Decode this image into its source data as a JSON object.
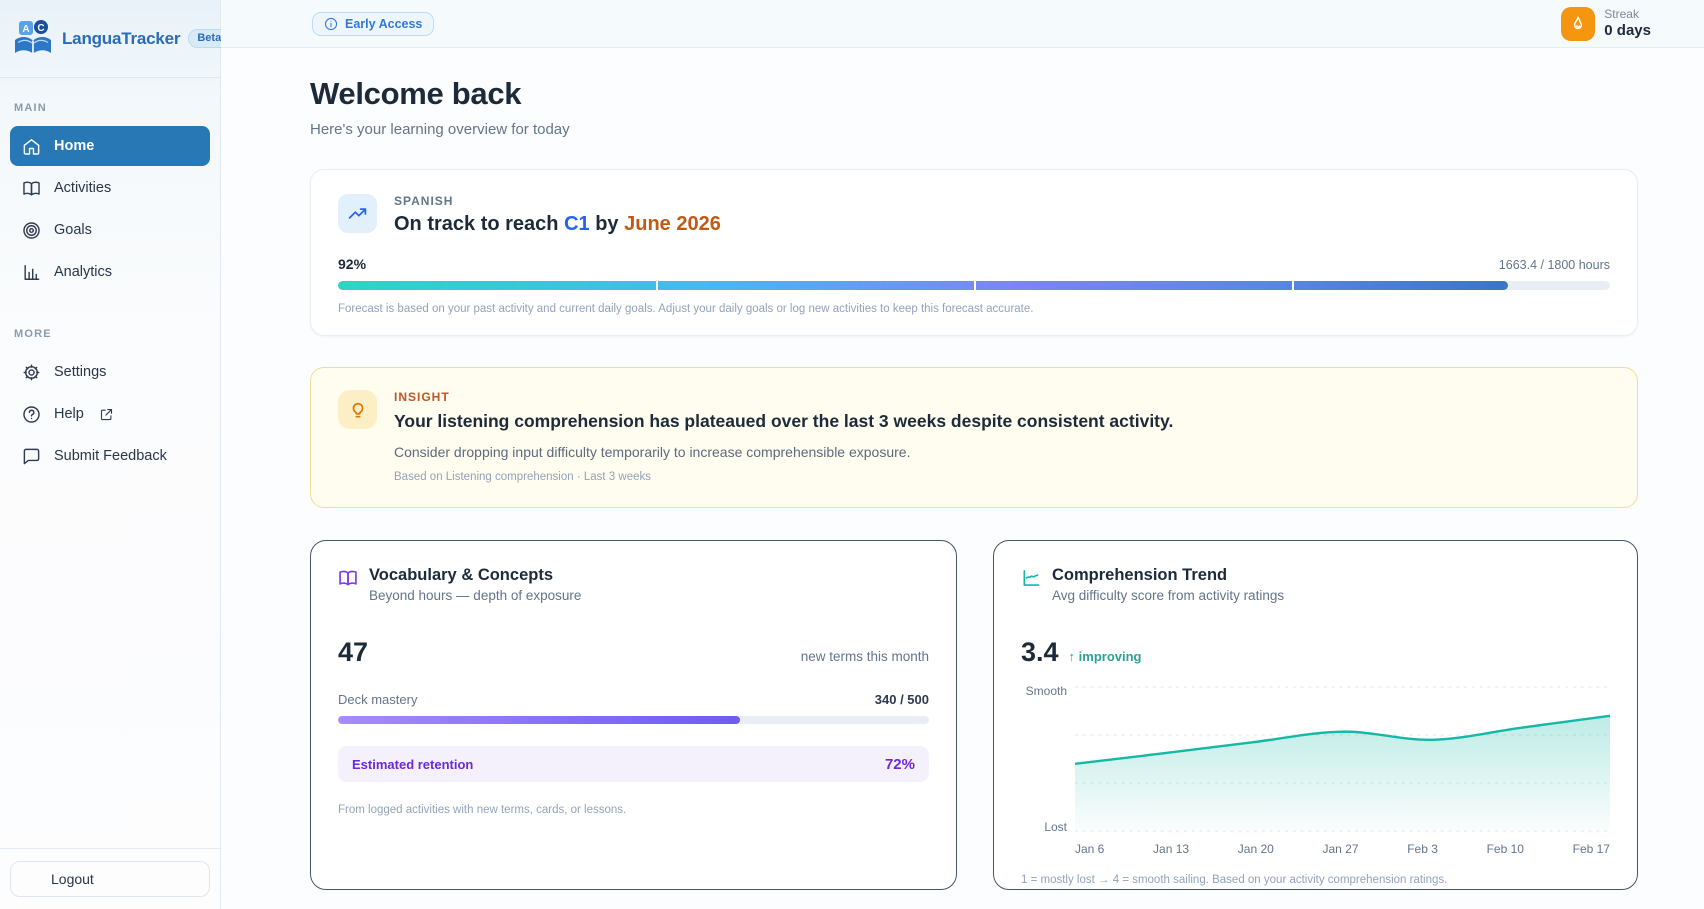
{
  "sidebar": {
    "logo": {
      "title": "LanguaTracker",
      "badge": "Beta",
      "icon": "book-with-letters"
    },
    "sections": [
      {
        "label": "MAIN",
        "items": [
          {
            "icon": "home-icon",
            "label": "Home",
            "active": true
          },
          {
            "icon": "book-open-icon",
            "label": "Activities",
            "active": false
          },
          {
            "icon": "target-icon",
            "label": "Goals",
            "active": false
          },
          {
            "icon": "bar-chart-icon",
            "label": "Analytics",
            "active": false
          }
        ]
      },
      {
        "label": "MORE",
        "items": [
          {
            "icon": "gear-icon",
            "label": "Settings",
            "active": false
          },
          {
            "icon": "help-circle-icon external-link-icon",
            "label": "Help",
            "active": false
          },
          {
            "icon": "message-square-icon",
            "label": "Submit Feedback",
            "active": false
          }
        ]
      }
    ],
    "logout_label": "Logout"
  },
  "topbar": {
    "early_access_label": "Early Access",
    "streak_label": "Streak",
    "streak_value": "0 days"
  },
  "header": {
    "title": "Welcome back",
    "subtitle": "Here's your learning overview for today"
  },
  "forecast": {
    "language": "SPANISH",
    "headline_prefix": "On track to reach",
    "level": "C1",
    "headline_mid": "by",
    "date": "June 2026",
    "progress_pct_label": "92%",
    "progress_value": 92,
    "hours": "1663.4 / 1800 hours",
    "note": "Forecast is based on your past activity and current daily goals. Adjust your daily goals or log new activities to keep this forecast accurate."
  },
  "insight": {
    "label": "INSIGHT",
    "headline": "Your listening comprehension has plateaued over the last 3 weeks despite consistent activity.",
    "suggestion": "Consider dropping input difficulty temporarily to increase comprehensible exposure.",
    "source": "Based on Listening comprehension · Last 3 weeks"
  },
  "vocab": {
    "title": "Vocabulary & Concepts",
    "subtitle": "Beyond hours — depth of exposure",
    "stat_value": "47",
    "stat_label": "new terms this month",
    "mastery_label": "Deck mastery",
    "mastery_value": "340 / 500",
    "mastery_pct": 68,
    "retention_label": "Estimated retention",
    "retention_value": "72%",
    "footnote": "From logged activities with new terms, cards, or lessons."
  },
  "trend": {
    "title": "Comprehension Trend",
    "subtitle": "Avg difficulty score from activity ratings",
    "stat_value": "3.4",
    "trend_label": "↑ improving",
    "footnote": "1 = mostly lost → 4 = smooth sailing. Based on your activity comprehension ratings."
  },
  "chart_data": {
    "type": "area",
    "title": "Comprehension Trend",
    "x": [
      "Jan 6",
      "Jan 13",
      "Jan 20",
      "Jan 27",
      "Feb 3",
      "Feb 10",
      "Feb 17"
    ],
    "values": [
      2.4,
      2.62,
      2.85,
      3.07,
      2.9,
      3.15,
      3.4
    ],
    "ylim": [
      1,
      4
    ],
    "ytick_labels": {
      "top": "Smooth",
      "bottom": "Lost"
    },
    "grid": "dashed horizontal at integer values 1-4",
    "legend": "none",
    "line_color": "#14b8a6",
    "fill_top_color": "rgba(20,184,166,0.28)",
    "fill_bottom_color": "rgba(20,184,166,0.02)"
  },
  "colors": {
    "active_nav": "#2878b5",
    "brand_blue": "#2b6cb8",
    "accent_blue": "#2563eb",
    "accent_orange": "#c05a14",
    "insight_amber": "#c05621",
    "purple": "#6d28d9",
    "teal": "#14b8a6",
    "streak_orange": "#f59510",
    "forecast_gradient": [
      "#2fd4c3",
      "#49b7ef",
      "#7d84f1",
      "#3a76c4"
    ]
  }
}
